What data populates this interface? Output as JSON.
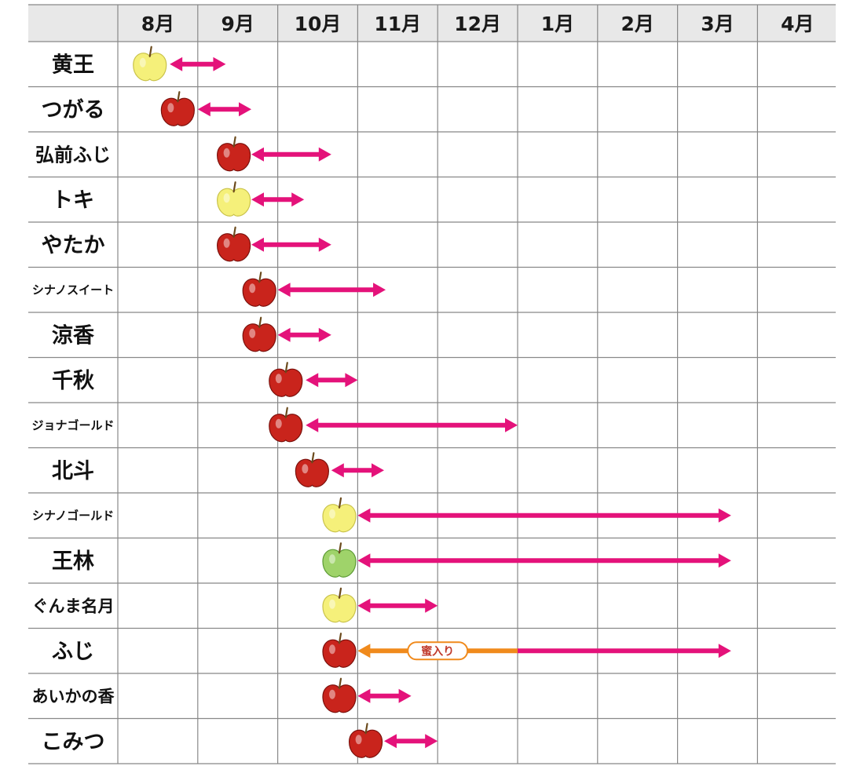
{
  "chart_data": {
    "type": "table",
    "months": [
      "8月",
      "9月",
      "10月",
      "11月",
      "12月",
      "1月",
      "2月",
      "3月",
      "4月"
    ],
    "varieties": [
      {
        "name": "黄王",
        "apple_color": "yellow",
        "harvest": 8.4,
        "arrow_start": 8.65,
        "arrow_end": 9.35
      },
      {
        "name": "つがる",
        "apple_color": "red",
        "harvest": 8.75,
        "arrow_start": 9.0,
        "arrow_end": 9.67
      },
      {
        "name": "弘前ふじ",
        "apple_color": "red",
        "harvest": 9.45,
        "arrow_start": 9.67,
        "arrow_end": 10.67
      },
      {
        "name": "トキ",
        "apple_color": "yellow",
        "harvest": 9.45,
        "arrow_start": 9.67,
        "arrow_end": 10.33
      },
      {
        "name": "やたか",
        "apple_color": "red",
        "harvest": 9.45,
        "arrow_start": 9.67,
        "arrow_end": 10.67
      },
      {
        "name": "シナノスイート",
        "apple_color": "red",
        "harvest": 9.77,
        "arrow_start": 10.0,
        "arrow_end": 11.35
      },
      {
        "name": "涼香",
        "apple_color": "red",
        "harvest": 9.77,
        "arrow_start": 10.0,
        "arrow_end": 10.67
      },
      {
        "name": "千秋",
        "apple_color": "red",
        "harvest": 10.1,
        "arrow_start": 10.35,
        "arrow_end": 11.0
      },
      {
        "name": "ジョナゴールド",
        "apple_color": "red",
        "harvest": 10.1,
        "arrow_start": 10.35,
        "arrow_end": 13.0
      },
      {
        "name": "北斗",
        "apple_color": "red",
        "harvest": 10.43,
        "arrow_start": 10.67,
        "arrow_end": 11.33
      },
      {
        "name": "シナノゴールド",
        "apple_color": "yellow",
        "harvest": 10.77,
        "arrow_start": 11.0,
        "arrow_end": 15.67
      },
      {
        "name": "王林",
        "apple_color": "green",
        "harvest": 10.77,
        "arrow_start": 11.0,
        "arrow_end": 15.67
      },
      {
        "name": "ぐんま名月",
        "apple_color": "yellow",
        "harvest": 10.77,
        "arrow_start": 11.0,
        "arrow_end": 12.0
      },
      {
        "name": "ふじ",
        "apple_color": "red",
        "harvest": 10.77,
        "arrow_start": 11.0,
        "arrow_end": 15.67,
        "honey_label": "蜜入り",
        "honey_end": 13.0
      },
      {
        "name": "あいかの香",
        "apple_color": "red",
        "harvest": 10.77,
        "arrow_start": 11.0,
        "arrow_end": 11.67
      },
      {
        "name": "こみつ",
        "apple_color": "red",
        "harvest": 11.1,
        "arrow_start": 11.33,
        "arrow_end": 12.0
      }
    ],
    "colors": {
      "arrow": "#e4127a",
      "honey_arrow": "#f08a1c",
      "header_bg": "#e8e8e8",
      "grid": "#888888",
      "apple_red": "#c9241c",
      "apple_yellow": "#f5f07a",
      "apple_green": "#9fd36a"
    }
  }
}
